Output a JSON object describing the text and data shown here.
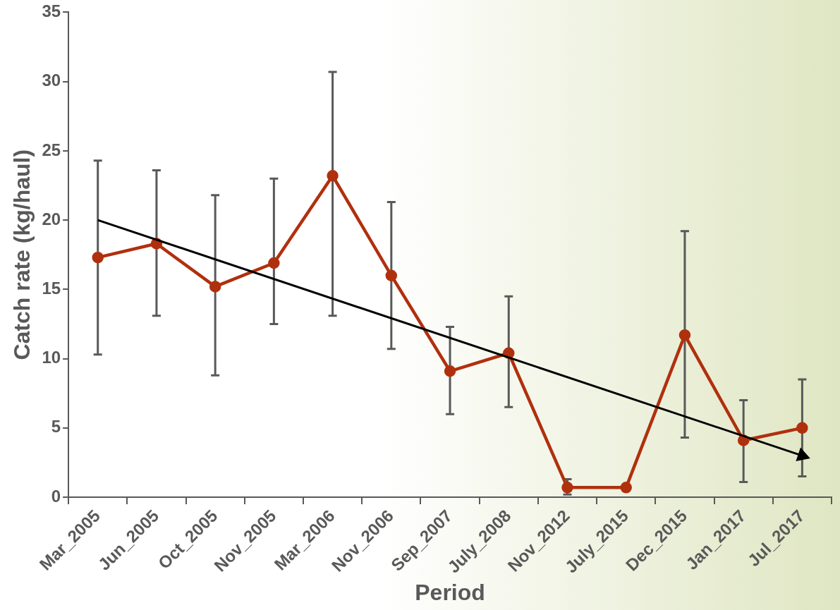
{
  "chart_data": {
    "type": "line",
    "xlabel": "Period",
    "ylabel": "Catch rate (kg/haul)",
    "categories": [
      "Mar_2005",
      "Jun_2005",
      "Oct_2005",
      "Nov_2005",
      "Mar_2006",
      "Nov_2006",
      "Sep_2007",
      "July_2008",
      "Nov_2012",
      "July_2015",
      "Dec_2015",
      "Jan_2017",
      "Jul_2017"
    ],
    "series": [
      {
        "type": "line",
        "color": "#b0300e",
        "values": [
          17.3,
          18.3,
          15.2,
          16.9,
          23.2,
          16.0,
          9.1,
          10.4,
          0.7,
          0.7,
          11.7,
          4.1,
          5.0
        ],
        "errors": [
          [
            10.3,
            24.3
          ],
          [
            13.1,
            23.6
          ],
          [
            8.8,
            21.8
          ],
          [
            12.5,
            23.0
          ],
          [
            13.1,
            30.7
          ],
          [
            10.7,
            21.3
          ],
          [
            6.0,
            12.3
          ],
          [
            6.5,
            14.5
          ],
          [
            0.2,
            1.3
          ],
          null,
          [
            4.3,
            19.2
          ],
          [
            1.1,
            7.0
          ],
          [
            1.5,
            8.5
          ]
        ],
        "marker": "circle"
      },
      {
        "color": "#000000",
        "x": [
          "Mar_2005",
          "Jul_2017"
        ],
        "values": [
          20,
          3
        ],
        "marker": "triangle"
      }
    ],
    "ylim": [
      0,
      35
    ],
    "yticks": [
      0,
      5,
      10,
      15,
      20,
      25,
      30,
      35
    ],
    "legend": false
  }
}
